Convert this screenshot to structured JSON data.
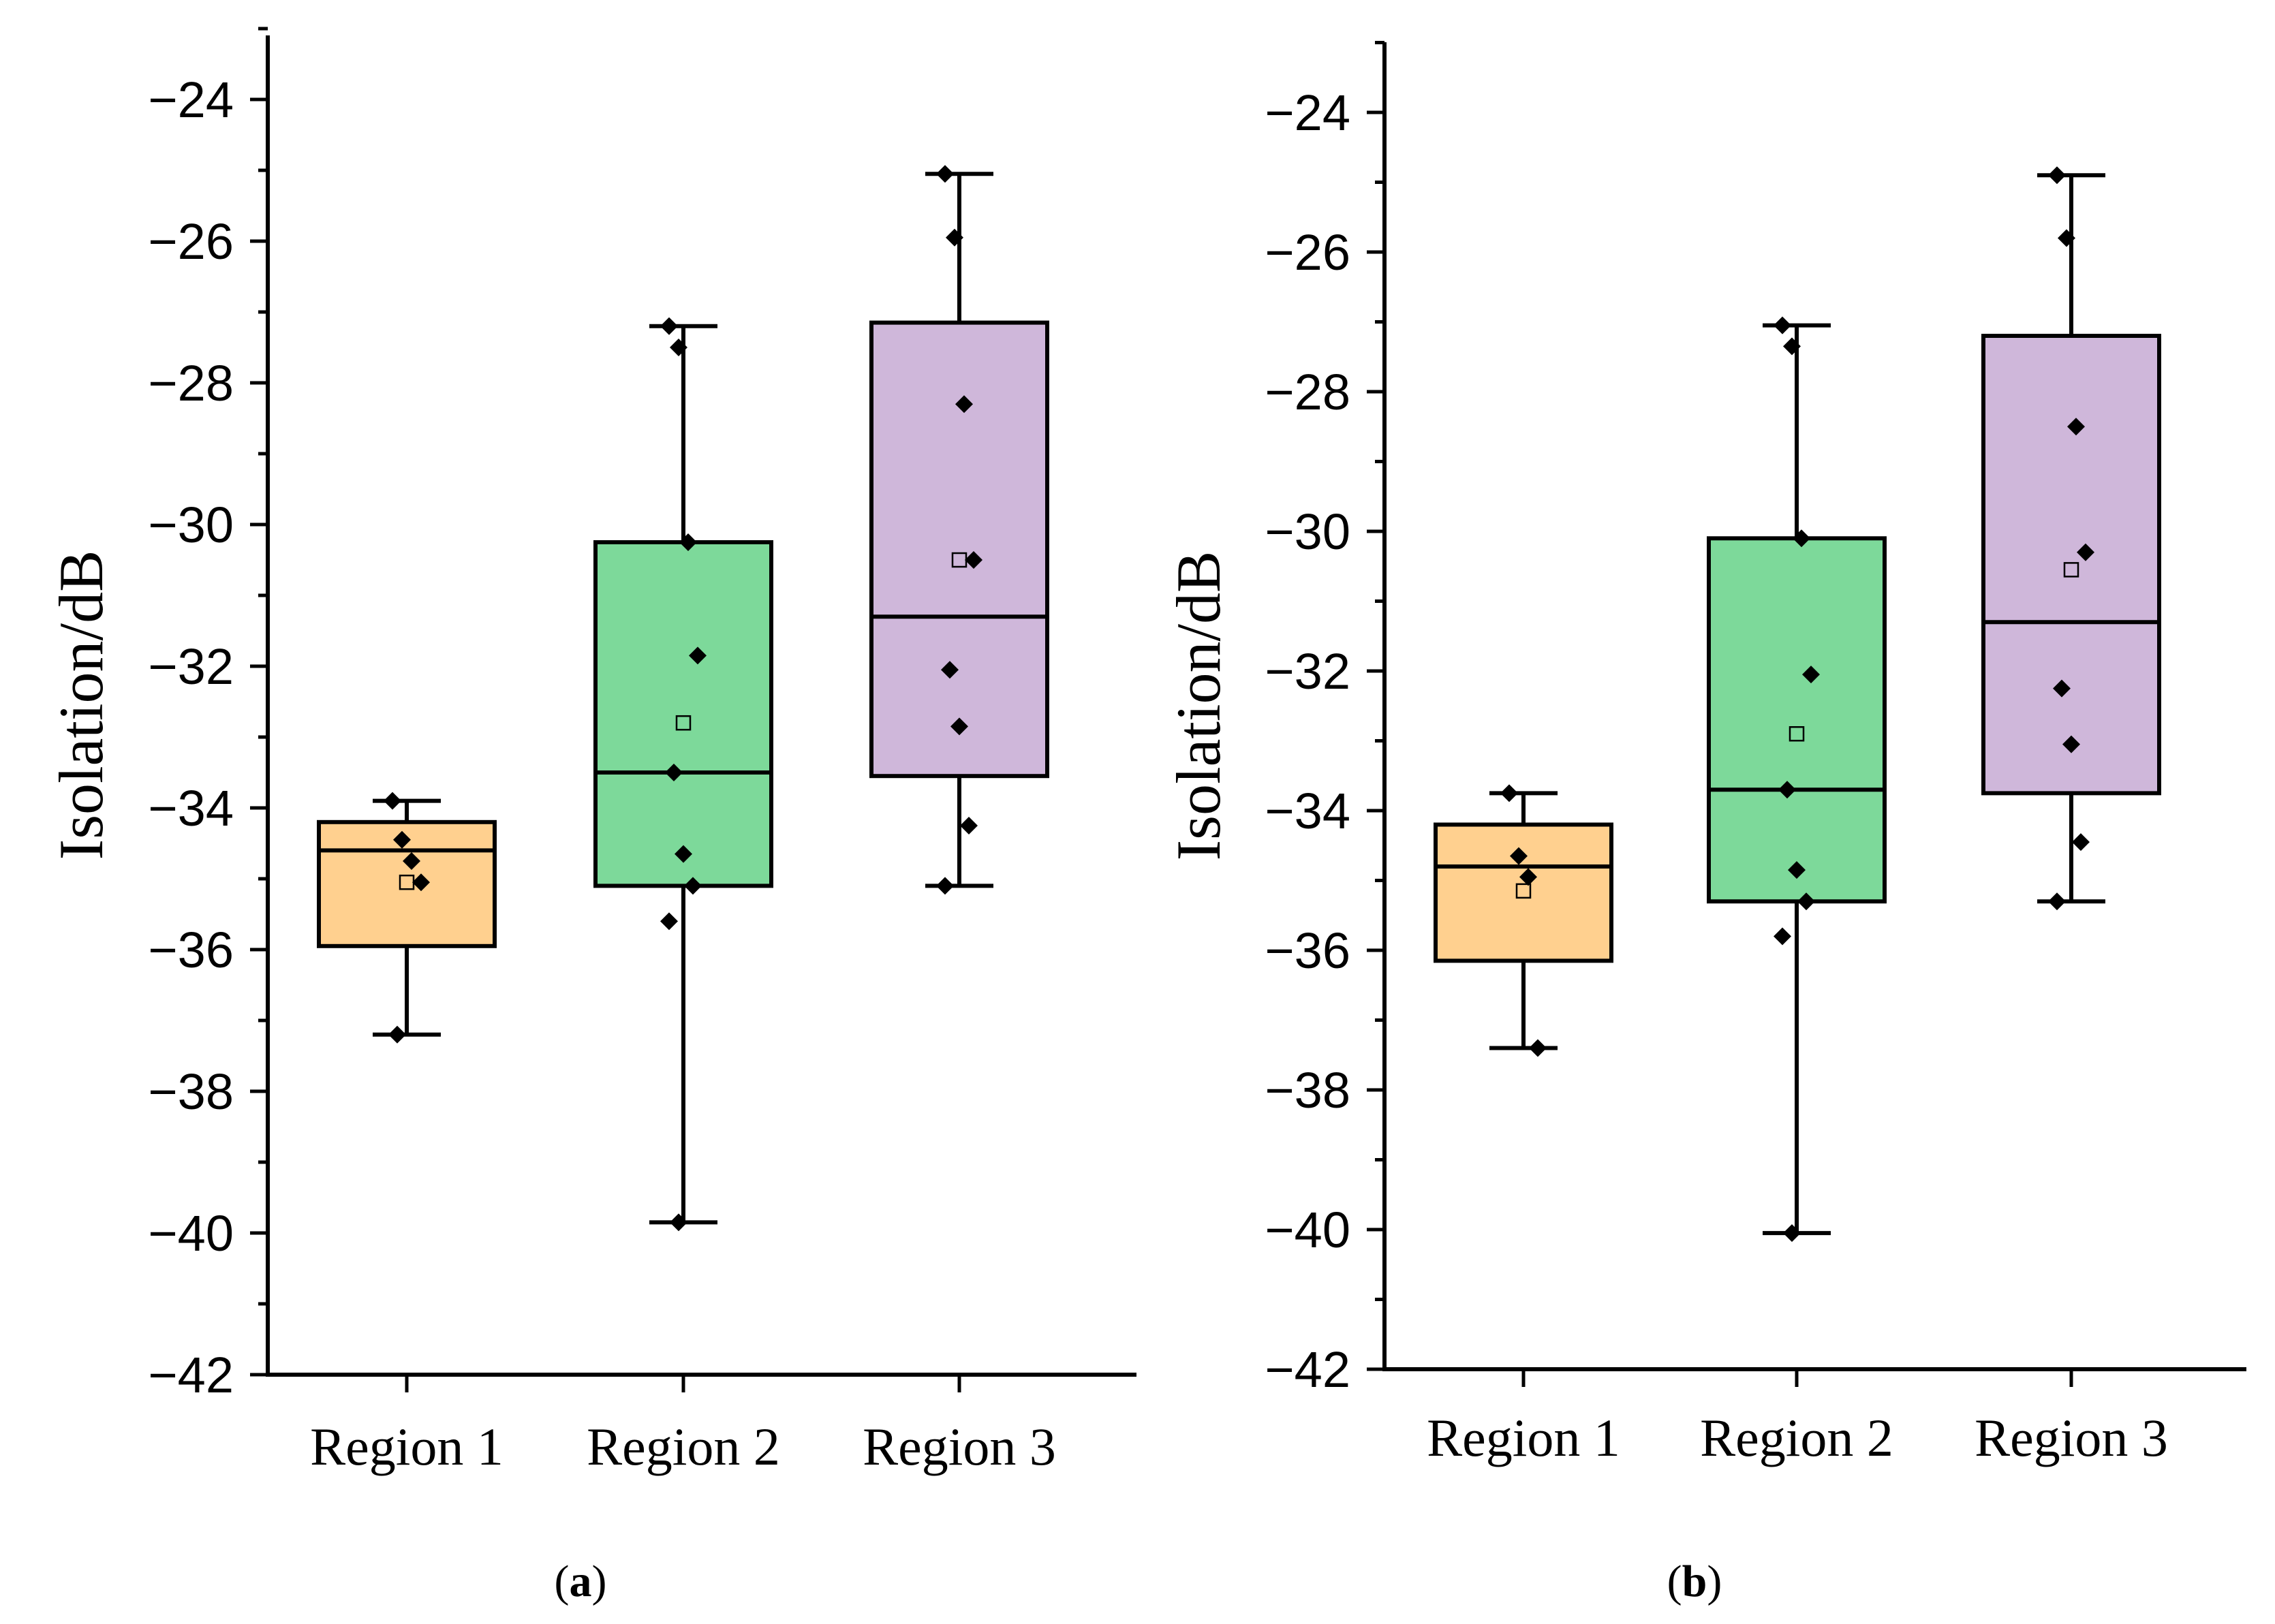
{
  "chart_data": [
    {
      "type": "box",
      "panel_label": "a",
      "ylabel": "Isolation/dB",
      "ylim": [
        -42,
        -23
      ],
      "yticks": [
        -42,
        -40,
        -38,
        -36,
        -34,
        -32,
        -30,
        -28,
        -26,
        -24
      ],
      "categories": [
        "Region 1",
        "Region 2",
        "Region 3"
      ],
      "colors": [
        "#FFD08F",
        "#7DD99A",
        "#CFB7DA"
      ],
      "boxes": [
        {
          "whisker_low": -37.2,
          "q1": -35.95,
          "median": -34.6,
          "q3": -34.2,
          "whisker_high": -33.9,
          "mean": -35.05,
          "points": [
            -33.9,
            -34.45,
            -34.75,
            -35.05,
            -37.2
          ]
        },
        {
          "whisker_low": -39.85,
          "q1": -35.1,
          "median": -33.5,
          "q3": -30.25,
          "whisker_high": -27.2,
          "mean": -32.8,
          "points": [
            -27.2,
            -27.5,
            -30.25,
            -31.85,
            -33.5,
            -34.65,
            -35.1,
            -35.6,
            -39.85
          ]
        },
        {
          "whisker_low": -35.1,
          "q1": -33.55,
          "median": -31.3,
          "q3": -27.15,
          "whisker_high": -25.05,
          "mean": -30.5,
          "points": [
            -25.05,
            -25.95,
            -28.3,
            -30.5,
            -32.05,
            -32.85,
            -34.25,
            -35.1
          ]
        }
      ]
    },
    {
      "type": "box",
      "panel_label": "b",
      "ylabel": "Isolation/dB",
      "ylim": [
        -42,
        -23
      ],
      "yticks": [
        -42,
        -40,
        -38,
        -36,
        -34,
        -32,
        -30,
        -28,
        -26,
        -24
      ],
      "categories": [
        "Region 1",
        "Region 2",
        "Region 3"
      ],
      "colors": [
        "#FFD08F",
        "#7DD99A",
        "#CFB7DA"
      ],
      "boxes": [
        {
          "whisker_low": -37.4,
          "q1": -36.15,
          "median": -34.8,
          "q3": -34.2,
          "whisker_high": -33.75,
          "mean": -35.15,
          "points": [
            -33.75,
            -34.65,
            -34.95,
            -37.4
          ]
        },
        {
          "whisker_low": -40.05,
          "q1": -35.3,
          "median": -33.7,
          "q3": -30.1,
          "whisker_high": -27.05,
          "mean": -32.9,
          "points": [
            -27.05,
            -27.35,
            -30.1,
            -32.05,
            -33.7,
            -34.85,
            -35.3,
            -35.8,
            -40.05
          ]
        },
        {
          "whisker_low": -35.3,
          "q1": -33.75,
          "median": -31.3,
          "q3": -27.2,
          "whisker_high": -24.9,
          "mean": -30.55,
          "points": [
            -24.9,
            -25.8,
            -28.5,
            -30.3,
            -32.25,
            -33.05,
            -34.45,
            -35.3
          ]
        }
      ]
    }
  ]
}
